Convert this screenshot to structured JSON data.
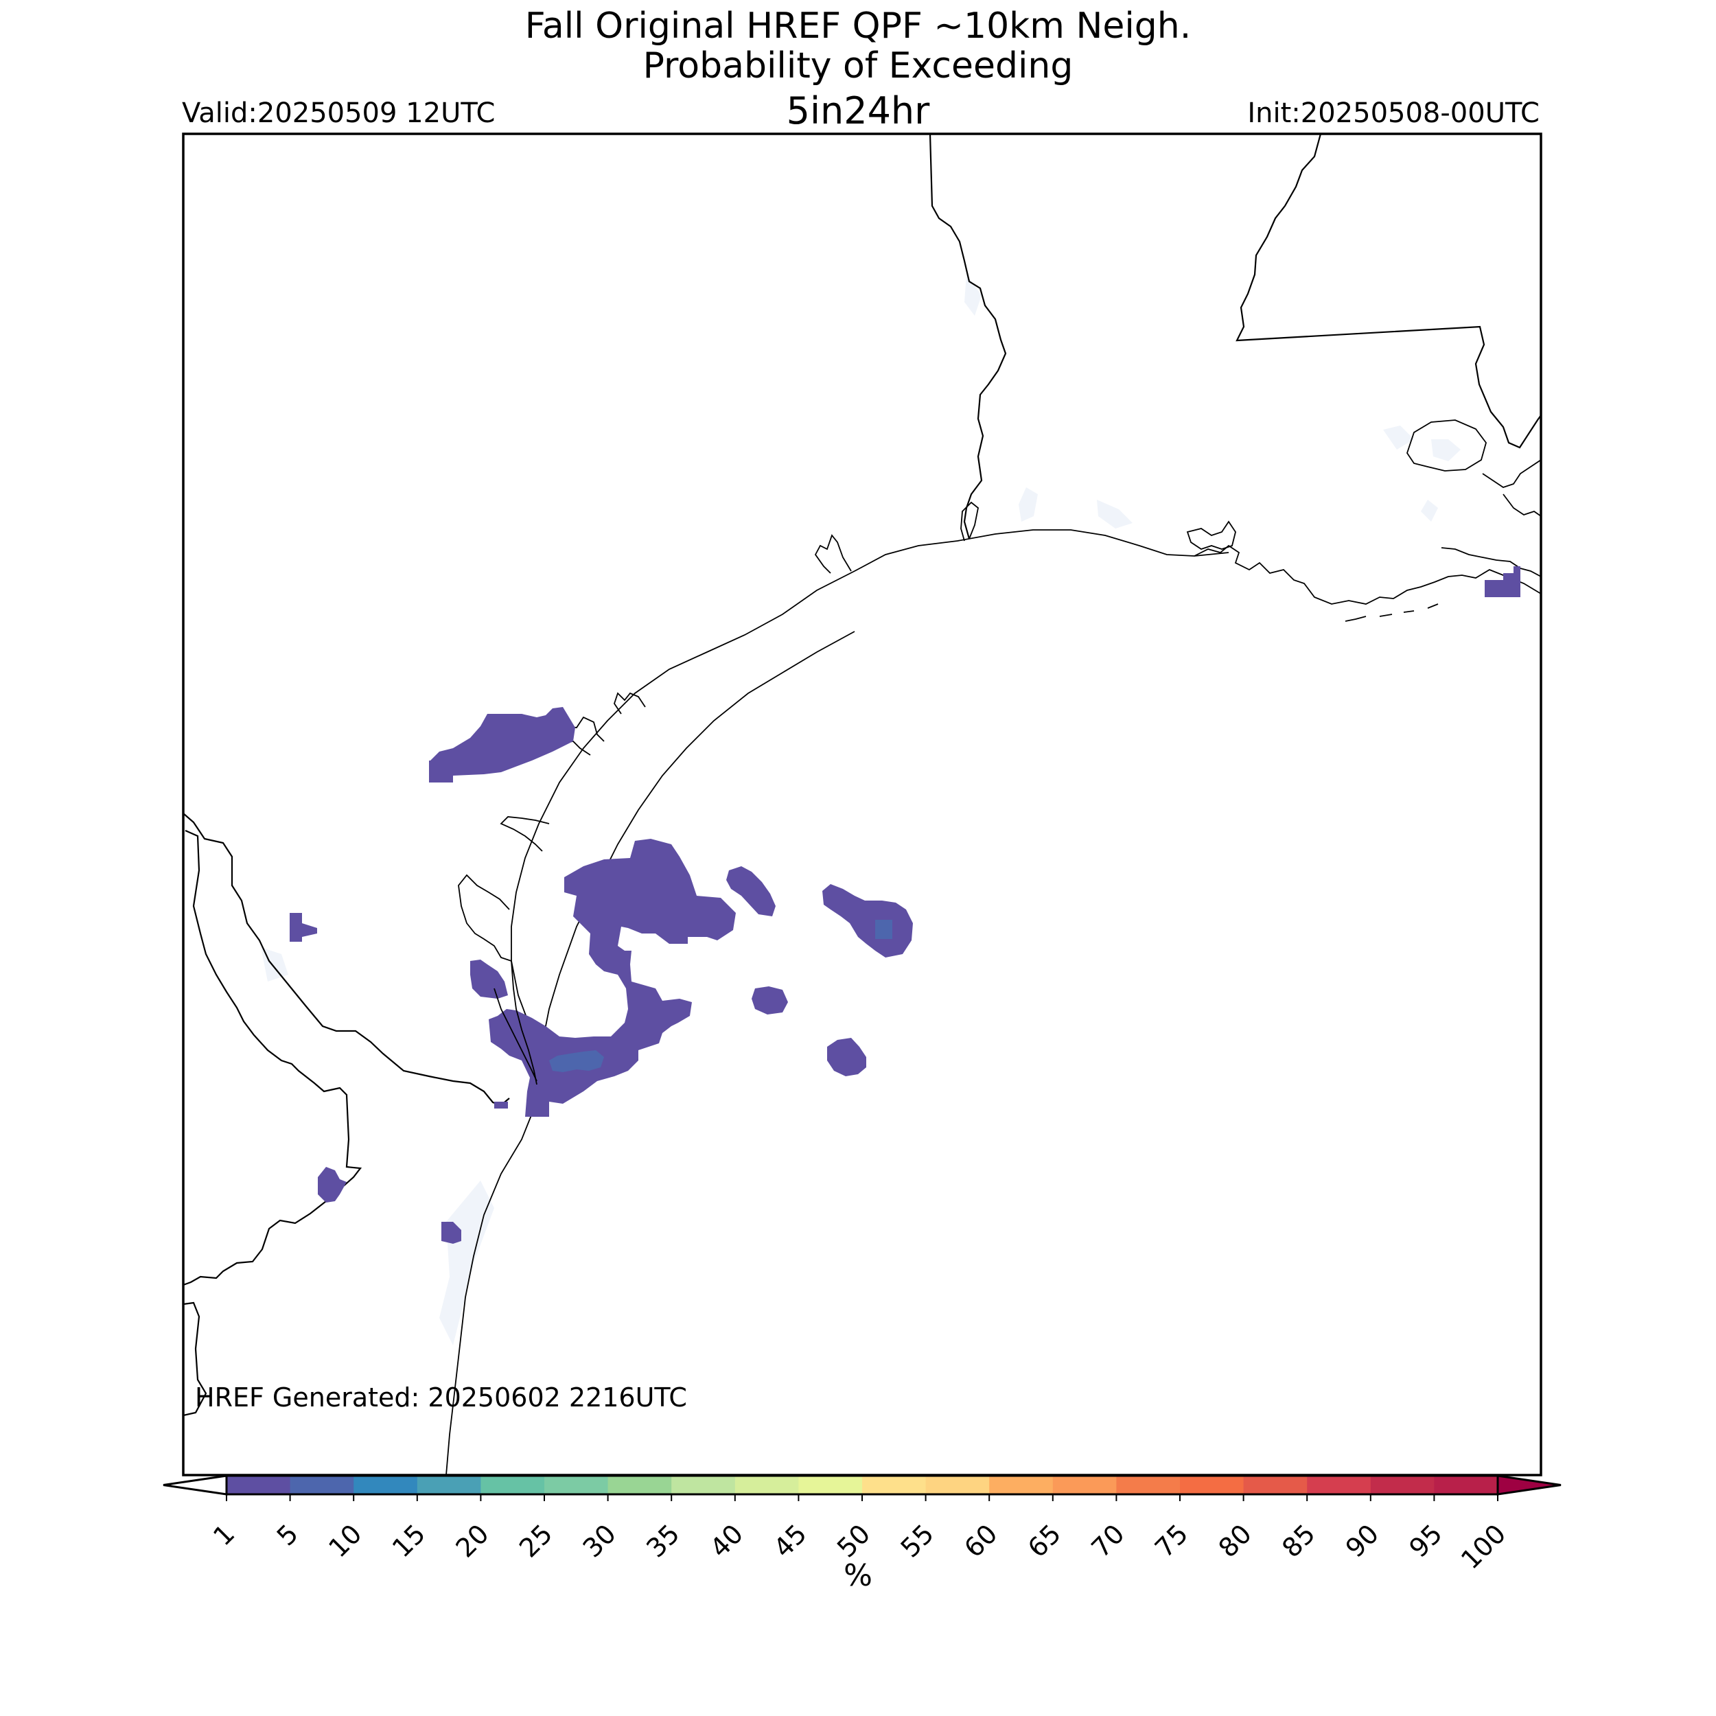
{
  "title": {
    "line1": "Fall Original HREF QPF ~10km Neigh.",
    "line2": "Probability of Exceeding",
    "threshold": "5in24hr",
    "valid": "Valid:20250509 12UTC",
    "init": "Init:20250508-00UTC"
  },
  "footer": {
    "generated": "HREF Generated: 20250602 2216UTC"
  },
  "colorbar": {
    "unit": "%",
    "ticks": [
      "1",
      "5",
      "10",
      "15",
      "20",
      "25",
      "30",
      "35",
      "40",
      "45",
      "50",
      "55",
      "60",
      "65",
      "70",
      "75",
      "80",
      "85",
      "90",
      "95",
      "100"
    ],
    "colors": [
      "#5e4fa2",
      "#4d66ad",
      "#3288bd",
      "#4aa0b5",
      "#66c2a5",
      "#7ccba4",
      "#99d594",
      "#bfe5a0",
      "#d6ee9b",
      "#e6f598",
      "#fee08b",
      "#fed481",
      "#fdae61",
      "#fb9a58",
      "#f47c4a",
      "#f46d43",
      "#e55a49",
      "#d53e4f",
      "#c22c4b",
      "#b8204a"
    ],
    "under_color": "#ffffff",
    "over_color": "#9e0142"
  },
  "colors": {
    "prob_1_5": "#5e4fa2",
    "prob_5_10": "#4d66ad",
    "water": "#f0f4fa"
  }
}
